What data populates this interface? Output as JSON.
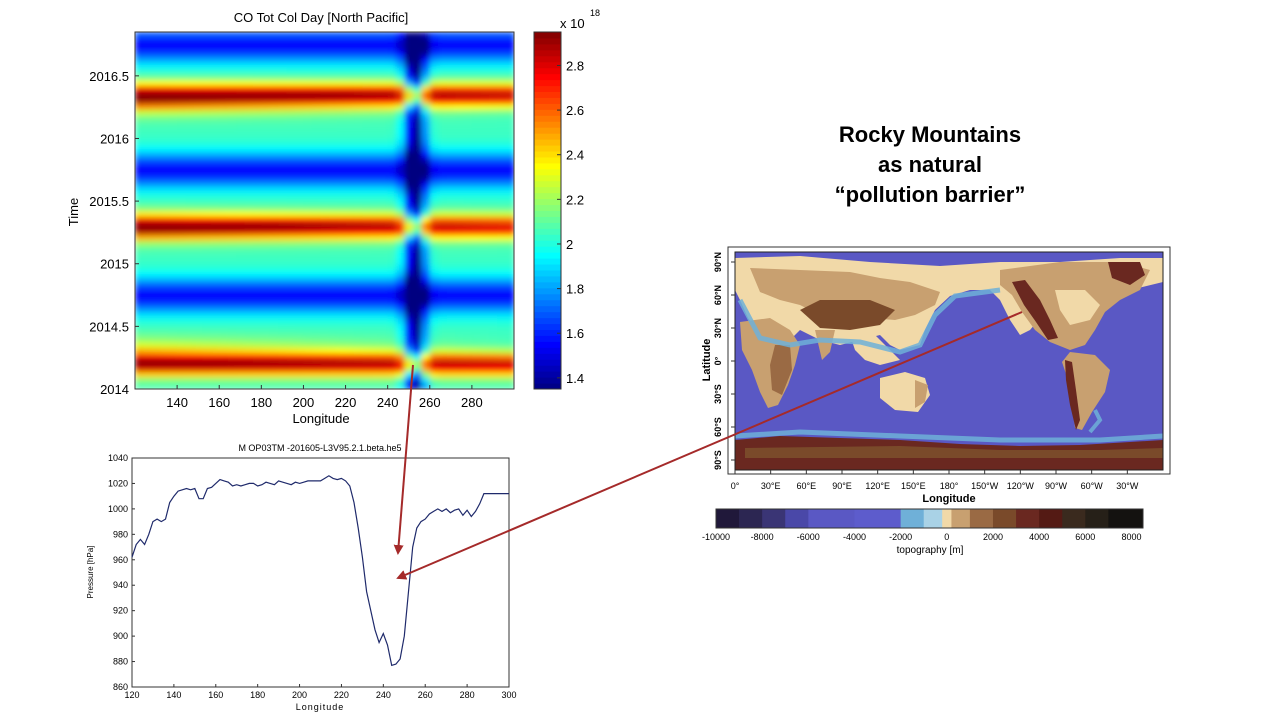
{
  "slide": {
    "title_lines": [
      "Rocky Mountains",
      "as natural",
      "“pollution barrier”"
    ]
  },
  "colors": {
    "arrow": "#a52a2a",
    "profile_line": "#1f2a6b",
    "ocean": "#5a58c4",
    "shelf": "#6fb0d8",
    "lowland": "#f1d9a8",
    "mountain": "#7a4a2a"
  },
  "chart_data": [
    {
      "type": "heatmap",
      "title": "CO Tot Col Day [North Pacific]",
      "xlabel": "Longitude",
      "ylabel": "Time",
      "xlim": [
        120,
        300
      ],
      "ylim": [
        2014,
        2016.85
      ],
      "x_ticks": [
        140,
        160,
        180,
        200,
        220,
        240,
        260,
        280
      ],
      "y_ticks": [
        2014,
        2014.5,
        2015,
        2015.5,
        2016,
        2016.5
      ],
      "colorbar": {
        "multiplier_label": "x 10",
        "exponent": "18",
        "range": [
          1.35,
          2.95
        ],
        "ticks": [
          1.4,
          1.6,
          1.8,
          2,
          2.2,
          2.4,
          2.6,
          2.8
        ],
        "colormap": "jet"
      },
      "features": {
        "min_longitude_band": 253,
        "seasonal_peaks_years": [
          2014.2,
          2015.3,
          2016.35
        ],
        "seasonal_lows_years": [
          2014.75,
          2015.75,
          2016.75
        ]
      }
    },
    {
      "type": "line",
      "title": "M OP03TM -201605-L3V95.2.1.beta.he5",
      "xlabel": "Longitude",
      "ylabel": "Pressure [hPa]",
      "xlim": [
        120,
        300
      ],
      "ylim": [
        860,
        1040
      ],
      "x_ticks": [
        120,
        140,
        160,
        180,
        200,
        220,
        240,
        260,
        280,
        300
      ],
      "y_ticks": [
        860,
        880,
        900,
        920,
        940,
        960,
        980,
        1000,
        1020,
        1040
      ],
      "series": [
        {
          "x": [
            120,
            122,
            124,
            126,
            128,
            130,
            132,
            134,
            136,
            138,
            140,
            142,
            144,
            146,
            148,
            150,
            152,
            154,
            156,
            158,
            160,
            162,
            164,
            166,
            168,
            170,
            172,
            174,
            176,
            178,
            180,
            182,
            184,
            186,
            188,
            190,
            192,
            194,
            196,
            198,
            200,
            202,
            204,
            206,
            208,
            210,
            212,
            214,
            216,
            218,
            220,
            222,
            224,
            226,
            228,
            230,
            232,
            234,
            236,
            238,
            240,
            242,
            244,
            246,
            248,
            250,
            252,
            254,
            256,
            258,
            260,
            262,
            264,
            266,
            268,
            270,
            272,
            274,
            276,
            278,
            280,
            282,
            284,
            286,
            288,
            290,
            292,
            294,
            296,
            298,
            300
          ],
          "values": [
            962,
            972,
            976,
            972,
            980,
            990,
            992,
            990,
            992,
            1005,
            1010,
            1014,
            1015,
            1016,
            1015,
            1016,
            1008,
            1008,
            1016,
            1017,
            1020,
            1023,
            1022,
            1021,
            1018,
            1019,
            1018,
            1019,
            1020,
            1020,
            1018,
            1019,
            1021,
            1020,
            1019,
            1022,
            1021,
            1020,
            1019,
            1021,
            1020,
            1021,
            1022,
            1022,
            1022,
            1022,
            1024,
            1026,
            1024,
            1023,
            1024,
            1022,
            1018,
            1005,
            985,
            962,
            935,
            920,
            905,
            895,
            902,
            893,
            877,
            878,
            882,
            900,
            935,
            970,
            985,
            990,
            992,
            996,
            998,
            1000,
            998,
            1000,
            997,
            999,
            1000,
            995,
            999,
            994,
            998,
            1004,
            1012,
            1012,
            1012,
            1012,
            1012,
            1012,
            1012
          ]
        }
      ]
    },
    {
      "type": "other",
      "title": "",
      "xlabel": "Longitude",
      "ylabel": "Latitude",
      "x_tick_labels": [
        "0°",
        "30°E",
        "60°E",
        "90°E",
        "120°E",
        "150°E",
        "180°",
        "150°W",
        "120°W",
        "90°W",
        "60°W",
        "30°W"
      ],
      "y_tick_labels": [
        "90°N",
        "60°N",
        "30°N",
        "0°",
        "30°S",
        "60°S",
        "90°S"
      ],
      "colorbar": {
        "label": "topography [m]",
        "tick_labels": [
          "-10000",
          "-8000",
          "-6000",
          "-4000",
          "-2000",
          "0",
          "2000",
          "4000",
          "6000",
          "8000"
        ],
        "ticks": [
          -10000,
          -8000,
          -6000,
          -4000,
          -2000,
          0,
          2000,
          4000,
          6000,
          8000
        ],
        "colors": [
          "#20183a",
          "#2c2652",
          "#3a3575",
          "#4a48a8",
          "#5a58c4",
          "#5d5ccc",
          "#6fb0d8",
          "#a9d2e6",
          "#f1d9a8",
          "#c8a070",
          "#9a6a44",
          "#7a4a2a",
          "#6a2820",
          "#541a14",
          "#3a2a1e",
          "#262018",
          "#141210"
        ]
      }
    }
  ]
}
